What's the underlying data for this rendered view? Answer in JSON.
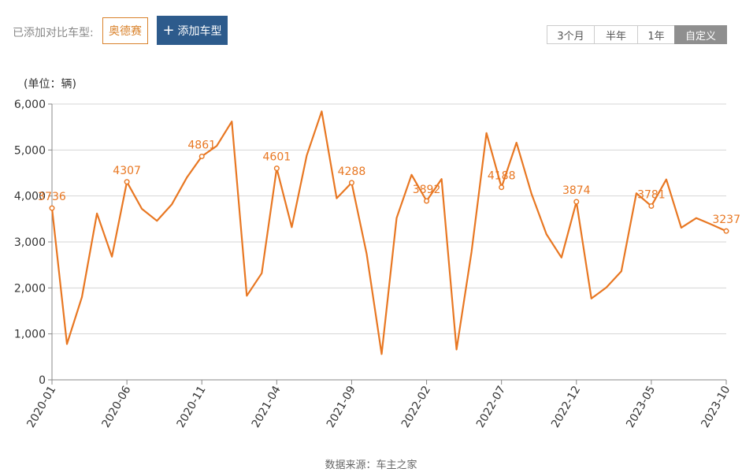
{
  "toolbar": {
    "compare_label": "已添加对比车型:",
    "model_tag": "奥德赛",
    "add_button_label": "添加车型",
    "range_buttons": [
      "3个月",
      "半年",
      "1年",
      "自定义"
    ],
    "active_range": "自定义"
  },
  "source": "数据来源：车主之家",
  "colors": {
    "line": "#e87722",
    "button": "#2d5b8c",
    "active_range": "#8f8f8f"
  },
  "chart_data": {
    "type": "line",
    "unit_label": "(单位：辆)",
    "ylim": [
      0,
      6000
    ],
    "yticks": [
      "0",
      "1,000",
      "2,000",
      "3,000",
      "4,000",
      "5,000",
      "6,000"
    ],
    "grid": true,
    "xtick_labels": [
      "2020-01",
      "2020-06",
      "2020-11",
      "2021-04",
      "2021-09",
      "2022-02",
      "2022-07",
      "2022-12",
      "2023-05",
      "2023-10"
    ],
    "x": [
      "2020-01",
      "2020-02",
      "2020-03",
      "2020-04",
      "2020-05",
      "2020-06",
      "2020-07",
      "2020-08",
      "2020-09",
      "2020-10",
      "2020-11",
      "2020-12",
      "2021-01",
      "2021-02",
      "2021-03",
      "2021-04",
      "2021-05",
      "2021-06",
      "2021-07",
      "2021-08",
      "2021-09",
      "2021-10",
      "2021-11",
      "2021-12",
      "2022-01",
      "2022-02",
      "2022-03",
      "2022-04",
      "2022-05",
      "2022-06",
      "2022-07",
      "2022-08",
      "2022-09",
      "2022-10",
      "2022-11",
      "2022-12",
      "2023-01",
      "2023-02",
      "2023-03",
      "2023-04",
      "2023-05",
      "2023-06",
      "2023-07",
      "2023-08",
      "2023-09",
      "2023-10"
    ],
    "values": [
      3736,
      780,
      1800,
      3620,
      2680,
      4307,
      3720,
      3460,
      3820,
      4400,
      4861,
      5090,
      5620,
      1830,
      2320,
      4601,
      3320,
      4880,
      5840,
      3950,
      4288,
      2740,
      560,
      3520,
      4460,
      3892,
      4370,
      660,
      2780,
      5370,
      4188,
      5160,
      4050,
      3170,
      2660,
      3874,
      1770,
      2010,
      2360,
      4060,
      3781,
      4360,
      3310,
      3520,
      3380,
      3237
    ],
    "labeled_points": [
      {
        "index": 0,
        "label": "3736"
      },
      {
        "index": 5,
        "label": "4307"
      },
      {
        "index": 10,
        "label": "4861"
      },
      {
        "index": 15,
        "label": "4601"
      },
      {
        "index": 20,
        "label": "4288"
      },
      {
        "index": 25,
        "label": "3892"
      },
      {
        "index": 30,
        "label": "4188"
      },
      {
        "index": 35,
        "label": "3874"
      },
      {
        "index": 40,
        "label": "3781"
      },
      {
        "index": 45,
        "label": "3237"
      }
    ]
  }
}
